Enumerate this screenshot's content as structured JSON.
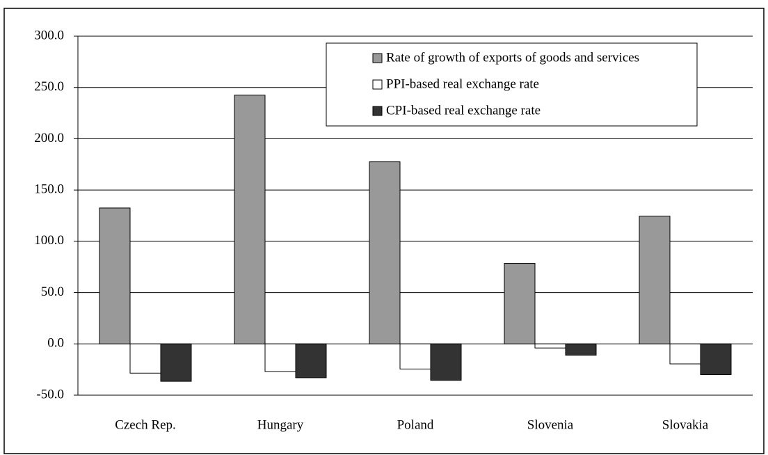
{
  "chart_data": {
    "type": "bar",
    "categories": [
      "Czech Rep.",
      "Hungary",
      "Poland",
      "Slovenia",
      "Slovakia"
    ],
    "series": [
      {
        "name": "Rate of growth of exports of goods and services",
        "color": "#999999",
        "values": [
          132.5,
          242.5,
          177.5,
          78.5,
          124.5
        ]
      },
      {
        "name": "PPI-based real exchange rate",
        "color": "#ffffff",
        "values": [
          -28.5,
          -27,
          -24.5,
          -4,
          -19.5
        ]
      },
      {
        "name": "CPI-based real exchange rate",
        "color": "#333333",
        "values": [
          -36.5,
          -33,
          -35.5,
          -11,
          -30
        ]
      }
    ],
    "ylim": [
      -50,
      300
    ],
    "yticks": [
      {
        "value": -50,
        "label": "-50.0"
      },
      {
        "value": 0,
        "label": "0.0"
      },
      {
        "value": 50,
        "label": "50.0"
      },
      {
        "value": 100,
        "label": "100.0"
      },
      {
        "value": 150,
        "label": "150.0"
      },
      {
        "value": 200,
        "label": "200.0"
      },
      {
        "value": 250,
        "label": "250.0"
      },
      {
        "value": 300,
        "label": "300.0"
      }
    ],
    "grid": true,
    "legend": "top-right"
  }
}
